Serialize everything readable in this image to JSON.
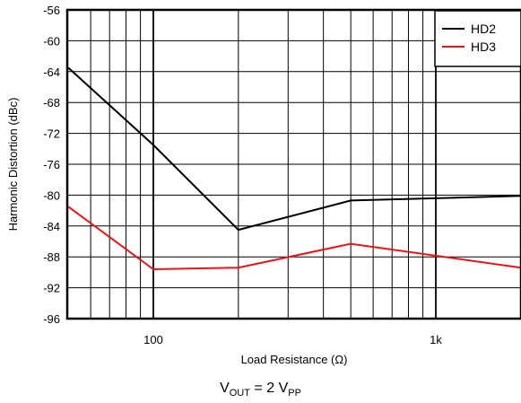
{
  "chart_data": {
    "type": "line",
    "title": "",
    "xlabel": "Load Resistance (Ω)",
    "ylabel": "Harmonic Distortion (dBc)",
    "x_scale": "log",
    "xlim": [
      50,
      2000
    ],
    "ylim": [
      -96,
      -56
    ],
    "y_ticks": [
      -56,
      -60,
      -64,
      -68,
      -72,
      -76,
      -80,
      -84,
      -88,
      -92,
      -96
    ],
    "x_tick_labels": [
      {
        "value": 100,
        "label": "100"
      },
      {
        "value": 1000,
        "label": "1k"
      }
    ],
    "grid": true,
    "legend_position": "top-right",
    "series": [
      {
        "name": "HD2",
        "color": "#000000",
        "points": [
          [
            50,
            -63.5
          ],
          [
            100,
            -73.5
          ],
          [
            200,
            -84.5
          ],
          [
            500,
            -80.7
          ],
          [
            2000,
            -80.1
          ]
        ]
      },
      {
        "name": "HD3",
        "color": "#e8141b",
        "points": [
          [
            50,
            -81.5
          ],
          [
            100,
            -89.6
          ],
          [
            200,
            -89.4
          ],
          [
            500,
            -86.3
          ],
          [
            2000,
            -89.4
          ]
        ]
      }
    ]
  },
  "caption": {
    "main": "V",
    "sub1": "OUT",
    "middle": " = 2 V",
    "sub2": "PP"
  }
}
